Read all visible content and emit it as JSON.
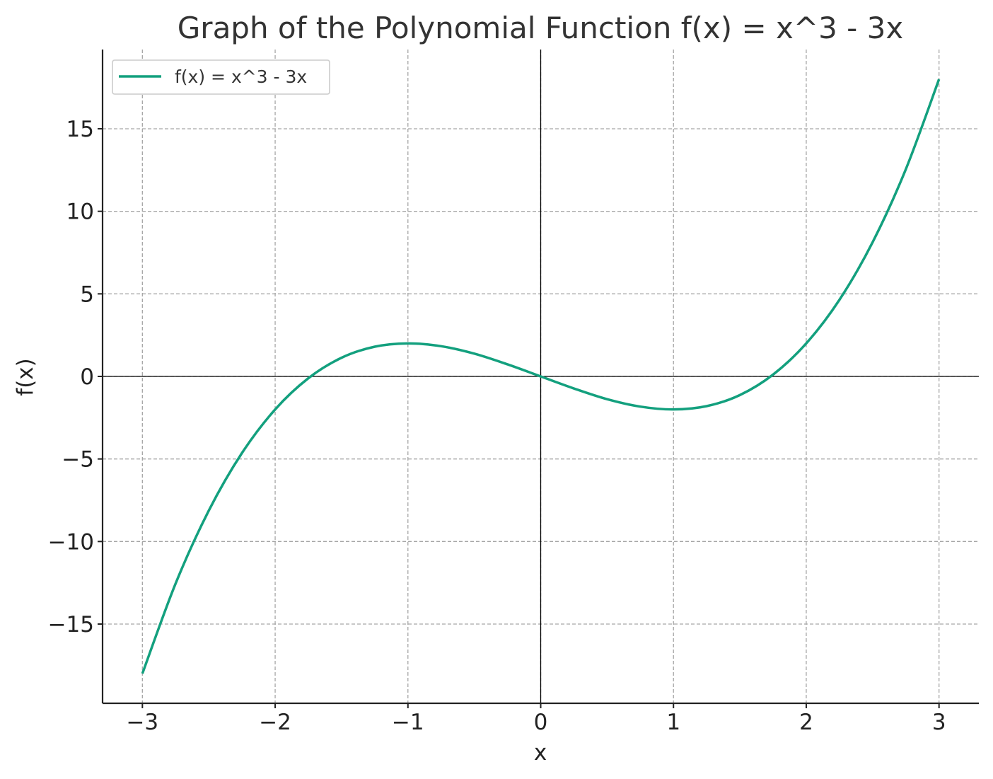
{
  "chart_data": {
    "type": "line",
    "title": "Graph of the Polynomial Function f(x) = x^3 - 3x",
    "xlabel": "x",
    "ylabel": "f(x)",
    "xlim": [
      -3.3,
      3.3
    ],
    "ylim": [
      -19.8,
      19.8
    ],
    "xticks": [
      -3,
      -2,
      -1,
      0,
      1,
      2,
      3
    ],
    "yticks": [
      -15,
      -10,
      -5,
      0,
      5,
      10,
      15
    ],
    "xtick_labels": [
      "−3",
      "−2",
      "−1",
      "0",
      "1",
      "2",
      "3"
    ],
    "ytick_labels": [
      "−15",
      "−10",
      "−5",
      "0",
      "5",
      "10",
      "15"
    ],
    "grid": true,
    "legend_position": "top-left",
    "series": [
      {
        "name": "f(x) = x^3 - 3x",
        "color": "#13a07e",
        "x": [
          -3,
          -2.75,
          -2.5,
          -2.25,
          -2,
          -1.75,
          -1.5,
          -1.25,
          -1,
          -0.75,
          -0.5,
          -0.25,
          0,
          0.25,
          0.5,
          0.75,
          1,
          1.25,
          1.5,
          1.75,
          2,
          2.25,
          2.5,
          2.75,
          3
        ],
        "y": [
          -18,
          -12.55,
          -8.13,
          -4.64,
          -2,
          -0.11,
          1.13,
          1.8,
          2,
          1.83,
          1.38,
          0.73,
          0,
          -0.73,
          -1.38,
          -1.83,
          -2,
          -1.8,
          -1.13,
          0.11,
          2,
          4.64,
          8.13,
          12.55,
          18
        ]
      }
    ]
  }
}
